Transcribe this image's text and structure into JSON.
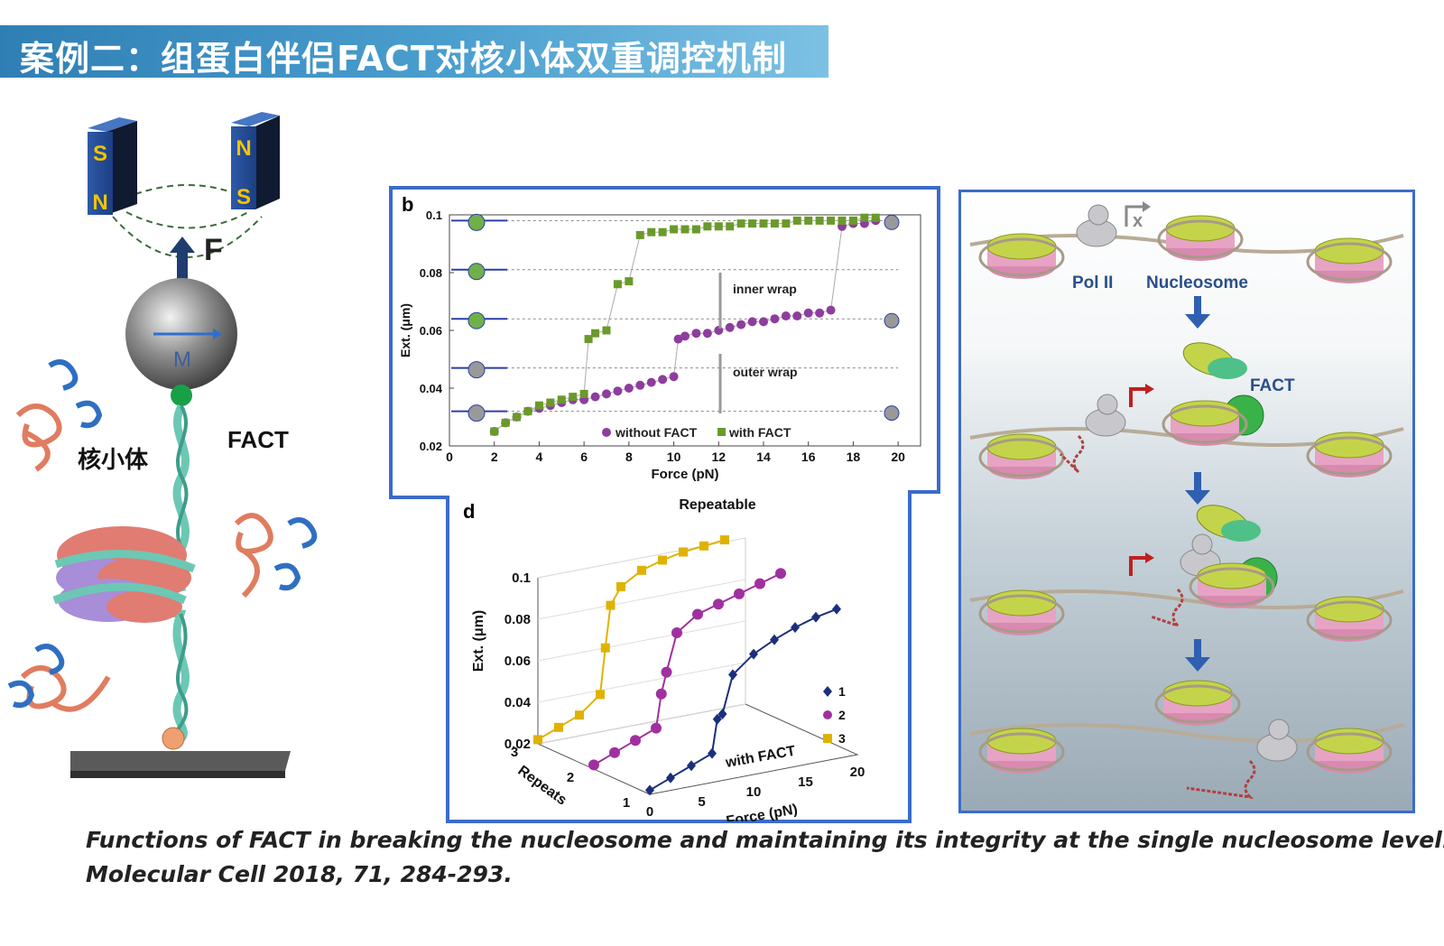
{
  "banner_title": "案例二：组蛋白伴侣FACT对核小体双重调控机制",
  "left_panel": {
    "magnet_left": {
      "top": "S",
      "bottom": "N"
    },
    "magnet_right": {
      "top": "N",
      "bottom": "S"
    },
    "force_label": "F",
    "bead_label": "M",
    "nucleosome_label": "核小体",
    "fact_label": "FACT"
  },
  "panel_b": {
    "letter": "b",
    "annotations": [
      "inner wrap",
      "outer wrap"
    ],
    "legend": [
      "without FACT",
      "with FACT"
    ],
    "chart_data": {
      "type": "scatter",
      "xlabel": "Force (pN)",
      "ylabel": "Ext. (μm)",
      "xlim": [
        0,
        21
      ],
      "ylim": [
        0.02,
        0.1
      ],
      "xticks": [
        "0",
        "2",
        "4",
        "6",
        "8",
        "10",
        "12",
        "14",
        "16",
        "18",
        "20"
      ],
      "yticks": [
        "0.02",
        "0.04",
        "0.06",
        "0.08",
        "0.1"
      ],
      "series": [
        {
          "name": "without FACT",
          "color": "#8e3d9e",
          "x": [
            2,
            2.5,
            3,
            3.5,
            4,
            4.5,
            5,
            5.5,
            6,
            6.5,
            7,
            7.5,
            8,
            8.5,
            9,
            9.5,
            10,
            10.2,
            10.5,
            11,
            11.5,
            12,
            12.5,
            13,
            13.5,
            14,
            14.5,
            15,
            15.5,
            16,
            16.5,
            17,
            17.5,
            18,
            18.5,
            19
          ],
          "y": [
            0.025,
            0.028,
            0.03,
            0.032,
            0.033,
            0.034,
            0.035,
            0.036,
            0.036,
            0.037,
            0.038,
            0.039,
            0.04,
            0.041,
            0.042,
            0.043,
            0.044,
            0.057,
            0.058,
            0.059,
            0.059,
            0.06,
            0.061,
            0.062,
            0.063,
            0.063,
            0.064,
            0.065,
            0.065,
            0.066,
            0.066,
            0.067,
            0.096,
            0.097,
            0.097,
            0.098
          ]
        },
        {
          "name": "with FACT",
          "color": "#6a9a2a",
          "x": [
            2,
            2.5,
            3,
            3.5,
            4,
            4.5,
            5,
            5.5,
            6,
            6.2,
            6.5,
            7,
            7.5,
            8,
            8.5,
            9,
            9.5,
            10,
            10.5,
            11,
            11.5,
            12,
            12.5,
            13,
            13.5,
            14,
            14.5,
            15,
            15.5,
            16,
            16.5,
            17,
            17.5,
            18,
            18.5,
            19
          ],
          "y": [
            0.025,
            0.028,
            0.03,
            0.032,
            0.034,
            0.035,
            0.036,
            0.037,
            0.038,
            0.057,
            0.059,
            0.06,
            0.076,
            0.077,
            0.093,
            0.094,
            0.094,
            0.095,
            0.095,
            0.095,
            0.096,
            0.096,
            0.096,
            0.097,
            0.097,
            0.097,
            0.097,
            0.097,
            0.098,
            0.098,
            0.098,
            0.098,
            0.098,
            0.098,
            0.099,
            0.099
          ]
        }
      ]
    }
  },
  "panel_d": {
    "letter": "d",
    "title": "Repeatable",
    "annotation": "with FACT",
    "legend": [
      "1",
      "2",
      "3"
    ],
    "chart_data": {
      "type": "line",
      "title": "Repeatable",
      "xlabel": "Force (pN)",
      "ylabel": "Ext. (μm)",
      "zlabel": "Repeats",
      "xticks": [
        "0",
        "5",
        "10",
        "15",
        "20"
      ],
      "yticks": [
        "0.02",
        "0.04",
        "0.06",
        "0.08",
        "0.1"
      ],
      "zticks": [
        "1",
        "2",
        "3"
      ],
      "series": [
        {
          "name": "1",
          "color": "#1c2f7c",
          "x": [
            0,
            2,
            4,
            6,
            6.5,
            7,
            8,
            10,
            12,
            14,
            16,
            18
          ],
          "y": [
            0.022,
            0.026,
            0.03,
            0.034,
            0.05,
            0.052,
            0.07,
            0.078,
            0.083,
            0.087,
            0.09,
            0.092
          ]
        },
        {
          "name": "2",
          "color": "#a030a0",
          "x": [
            0,
            2,
            4,
            6,
            6.5,
            7,
            8,
            10,
            12,
            14,
            16,
            18
          ],
          "y": [
            0.022,
            0.026,
            0.03,
            0.034,
            0.05,
            0.06,
            0.078,
            0.085,
            0.088,
            0.091,
            0.094,
            0.097
          ]
        },
        {
          "name": "3",
          "color": "#e0b200",
          "x": [
            0,
            2,
            4,
            6,
            6.5,
            7,
            8,
            10,
            12,
            14,
            16,
            18
          ],
          "y": [
            0.022,
            0.026,
            0.03,
            0.038,
            0.06,
            0.08,
            0.088,
            0.094,
            0.097,
            0.099,
            0.1,
            0.101
          ]
        }
      ]
    }
  },
  "right_panel": {
    "labels": {
      "pol": "Pol II",
      "nucleosome": "Nucleosome",
      "fact": "FACT",
      "axis": "x"
    }
  },
  "caption": {
    "line1": "Functions of FACT in breaking the nucleosome and maintaining its integrity at the single nucleosome level.",
    "line2": "Molecular Cell 2018, 71, 284-293."
  }
}
